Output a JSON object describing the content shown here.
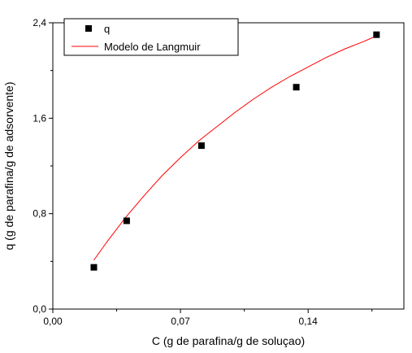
{
  "chart_data": {
    "type": "scatter",
    "title": "",
    "xlabel": "C (g de parafina/g de soluçao)",
    "ylabel": "q (g de parafina/g de adsorvente)",
    "xlim": [
      0.0,
      0.1925
    ],
    "ylim": [
      0.0,
      2.4
    ],
    "x_ticks": [
      0.0,
      0.07,
      0.14
    ],
    "x_tick_labels": [
      "0,00",
      "0,07",
      "0,14"
    ],
    "y_ticks": [
      0.0,
      0.8,
      1.6,
      2.4
    ],
    "y_tick_labels": [
      "0,0",
      "0,8",
      "1,6",
      "2,4"
    ],
    "grid": false,
    "legend_position": "top-left",
    "series": [
      {
        "name": "q",
        "kind": "scatter",
        "marker": "square",
        "color": "#000000",
        "x": [
          0.0225,
          0.0405,
          0.0815,
          0.1335,
          0.1775
        ],
        "y": [
          0.35,
          0.74,
          1.37,
          1.86,
          2.3
        ]
      },
      {
        "name": "Modelo de Langmuir",
        "kind": "line",
        "color": "#ff0000",
        "x": [
          0.0225,
          0.03,
          0.04,
          0.05,
          0.06,
          0.07,
          0.08,
          0.09,
          0.1,
          0.11,
          0.12,
          0.13,
          0.14,
          0.15,
          0.16,
          0.17,
          0.1775
        ],
        "y": [
          0.41,
          0.57,
          0.77,
          0.95,
          1.12,
          1.27,
          1.41,
          1.53,
          1.65,
          1.76,
          1.86,
          1.95,
          2.03,
          2.11,
          2.18,
          2.24,
          2.29
        ]
      }
    ]
  }
}
